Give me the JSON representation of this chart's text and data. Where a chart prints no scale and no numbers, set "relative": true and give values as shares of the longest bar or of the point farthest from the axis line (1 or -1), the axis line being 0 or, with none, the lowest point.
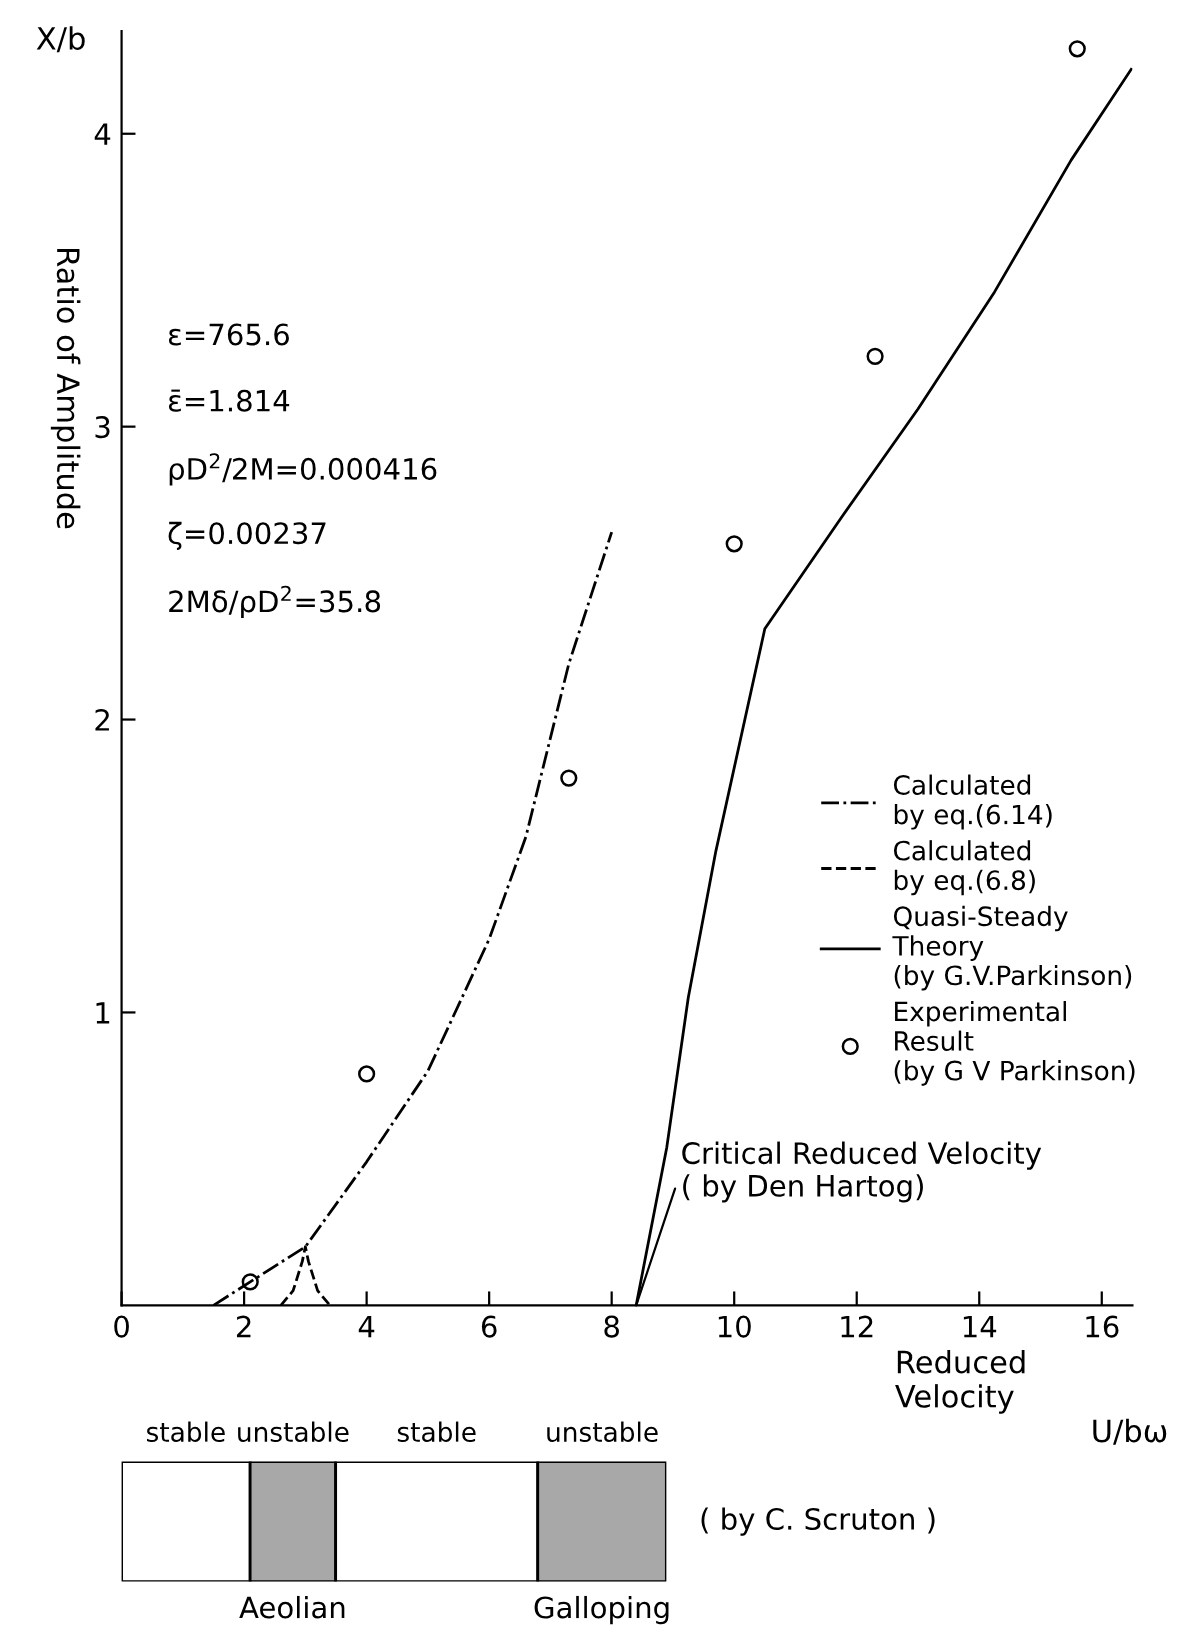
{
  "chart_data": [
    {
      "type": "line",
      "ylabel": "Ratio of Amplitude",
      "xlabel": "Reduced\nVelocity",
      "xlim": [
        0,
        16.5
      ],
      "ylim": [
        0,
        4.35
      ],
      "xticks": [
        0,
        2,
        4,
        6,
        8,
        10,
        12,
        14,
        16
      ],
      "yticks": [
        1,
        2,
        3,
        4
      ],
      "grid": false,
      "legend": "center right",
      "series": [
        {
          "name": "Calculated\nby eq.(6.14)",
          "type": "line",
          "line_style": "dashdot",
          "color": "#000000",
          "x": [
            1.5,
            2.1,
            3.0,
            4.0,
            5.0,
            6.0,
            6.6,
            7.3,
            8.0
          ],
          "values": [
            0.0,
            0.08,
            0.2,
            0.49,
            0.8,
            1.25,
            1.6,
            2.19,
            2.64
          ]
        },
        {
          "name": "Calculated\nby eq.(6.8)",
          "type": "line",
          "line_style": "dashed",
          "color": "#000000",
          "x": [
            2.6,
            2.8,
            2.95,
            3.0,
            3.05,
            3.2,
            3.4
          ],
          "values": [
            0.0,
            0.05,
            0.15,
            0.2,
            0.15,
            0.05,
            0.0
          ]
        },
        {
          "name": "Quasi-Steady\nTheory\n(by G.V.Parkinson)",
          "type": "line",
          "line_style": "solid",
          "color": "#000000",
          "x": [
            8.4,
            8.9,
            9.25,
            9.7,
            10.5,
            11.75,
            13.0,
            14.25,
            15.5,
            16.48
          ],
          "values": [
            0.0,
            0.54,
            1.05,
            1.55,
            2.31,
            2.69,
            3.06,
            3.46,
            3.91,
            4.22
          ]
        },
        {
          "name": "Experimental\nResult\n(by G V Parkinson)",
          "type": "scatter",
          "marker": "circle",
          "color": "#000000",
          "x": [
            2.1,
            4.0,
            7.3,
            10.0,
            12.3,
            15.6
          ],
          "values": [
            0.08,
            0.79,
            1.8,
            2.6,
            3.24,
            4.29
          ]
        }
      ],
      "annotations": [
        "X/b",
        "U/bω",
        "ε=765.6",
        "ε̄=1.814",
        "ρD$^{2}$/2M=0.000416",
        "ζ=0.00237",
        "2Mδ/ρD$^{2}$=35.8",
        {
          "text": "Critical Reduced Velocity\n( by Den Hartog)",
          "x": 8.4,
          "y": 0
        }
      ]
    },
    {
      "type": "bar",
      "orientation": "horizontal",
      "stacked": true,
      "relative": true,
      "categories": [
        null
      ],
      "series": [
        {
          "name": "stable",
          "color": "#ffffff",
          "values": [
            0.236
          ]
        },
        {
          "name": "unstable",
          "color": "#a8a8a8",
          "values": [
            0.157
          ]
        },
        {
          "name": "stable",
          "color": "#ffffff",
          "values": [
            0.371
          ]
        },
        {
          "name": "unstable",
          "color": "#a8a8a8",
          "values": [
            0.236
          ]
        }
      ],
      "annotations": [
        "Aeolian",
        "Galloping",
        "( by C. Scruton )"
      ]
    }
  ]
}
